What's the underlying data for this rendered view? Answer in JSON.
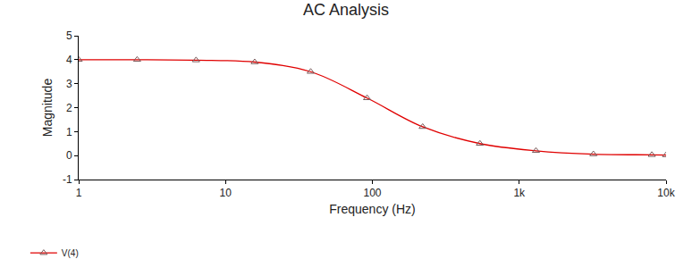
{
  "chart_data": {
    "type": "line",
    "title": "AC Analysis",
    "x_label": "Frequency (Hz)",
    "y_label": "Magnitude",
    "log": "x",
    "grid": false,
    "legend": "bottom left",
    "xlim": [
      1,
      10000
    ],
    "xticks": [
      1,
      10,
      100,
      {
        "value": 1000,
        "label": "1k"
      },
      {
        "value": 10000,
        "label": "10k"
      }
    ],
    "ylim": [
      -1,
      5
    ],
    "yticks": [
      -1,
      0,
      1,
      2,
      3,
      4,
      5
    ],
    "series": [
      {
        "name": "V(4)",
        "color": "#e00000",
        "marker": "triangle",
        "line_style": "solid",
        "x": [
          1,
          2.5,
          6.3,
          15.8,
          38,
          92,
          220,
          540,
          1300,
          3200,
          8000,
          10000
        ],
        "values": [
          4.0,
          4.0,
          3.98,
          3.9,
          3.5,
          2.4,
          1.2,
          0.5,
          0.2,
          0.06,
          0.03,
          0.02
        ]
      }
    ]
  }
}
